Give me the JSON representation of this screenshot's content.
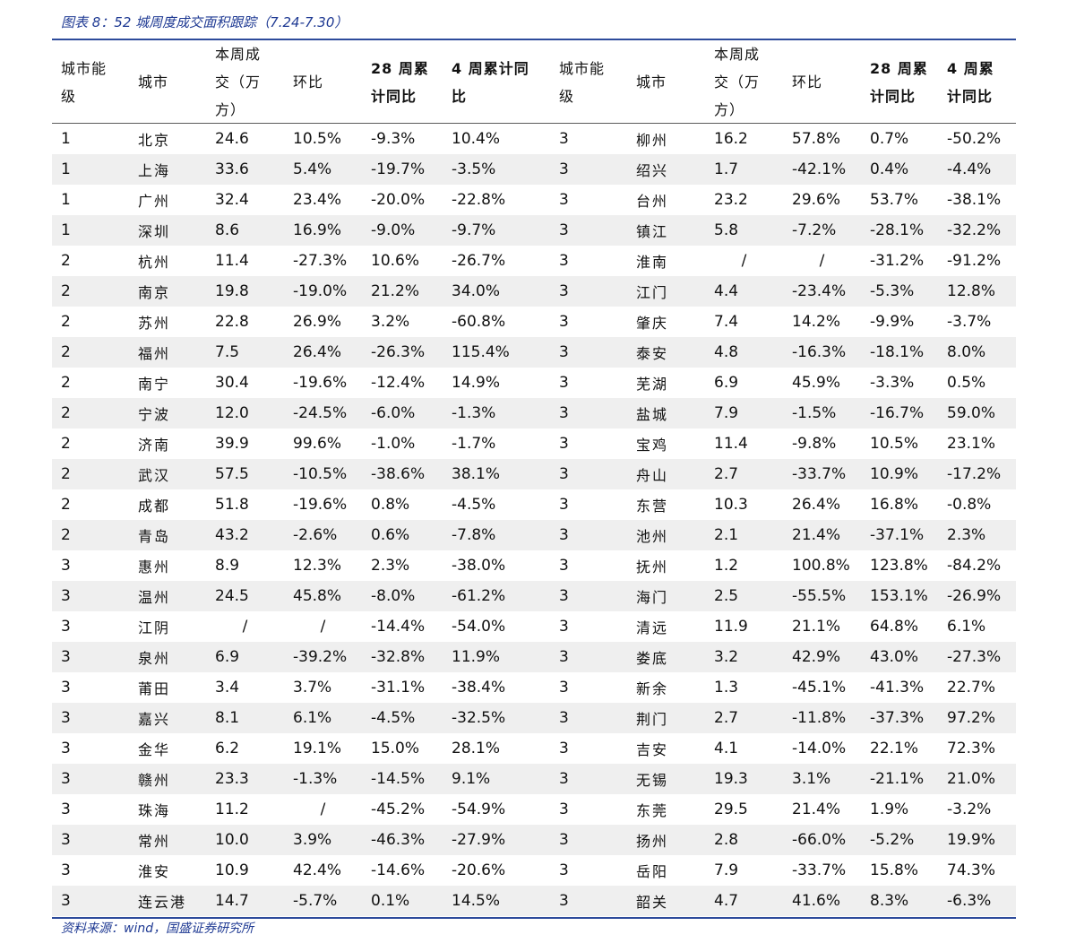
{
  "caption": "图表 8：52 城周度成交面积跟踪（7.24-7.30）",
  "source": "资料来源：wind，国盛证券研究所",
  "headers": [
    "城市能\n级",
    "城市",
    "本周成\n交（万\n方）",
    "环比",
    "28 周累\n计同比",
    "4 周累计同\n比",
    "城市能\n级",
    "城市",
    "本周成\n交（万\n方）",
    "环比",
    "28 周累\n计同比",
    "4 周累\n计同比"
  ],
  "rows": [
    [
      "1",
      "北京",
      "24.6",
      "10.5%",
      "-9.3%",
      "10.4%",
      "3",
      "柳州",
      "16.2",
      "57.8%",
      "0.7%",
      "-50.2%"
    ],
    [
      "1",
      "上海",
      "33.6",
      "5.4%",
      "-19.7%",
      "-3.5%",
      "3",
      "绍兴",
      "1.7",
      "-42.1%",
      "0.4%",
      "-4.4%"
    ],
    [
      "1",
      "广州",
      "32.4",
      "23.4%",
      "-20.0%",
      "-22.8%",
      "3",
      "台州",
      "23.2",
      "29.6%",
      "53.7%",
      "-38.1%"
    ],
    [
      "1",
      "深圳",
      "8.6",
      "16.9%",
      "-9.0%",
      "-9.7%",
      "3",
      "镇江",
      "5.8",
      "-7.2%",
      "-28.1%",
      "-32.2%"
    ],
    [
      "2",
      "杭州",
      "11.4",
      "-27.3%",
      "10.6%",
      "-26.7%",
      "3",
      "淮南",
      "/",
      "/",
      "-31.2%",
      "-91.2%"
    ],
    [
      "2",
      "南京",
      "19.8",
      "-19.0%",
      "21.2%",
      "34.0%",
      "3",
      "江门",
      "4.4",
      "-23.4%",
      "-5.3%",
      "12.8%"
    ],
    [
      "2",
      "苏州",
      "22.8",
      "26.9%",
      "3.2%",
      "-60.8%",
      "3",
      "肇庆",
      "7.4",
      "14.2%",
      "-9.9%",
      "-3.7%"
    ],
    [
      "2",
      "福州",
      "7.5",
      "26.4%",
      "-26.3%",
      "115.4%",
      "3",
      "泰安",
      "4.8",
      "-16.3%",
      "-18.1%",
      "8.0%"
    ],
    [
      "2",
      "南宁",
      "30.4",
      "-19.6%",
      "-12.4%",
      "14.9%",
      "3",
      "芜湖",
      "6.9",
      "45.9%",
      "-3.3%",
      "0.5%"
    ],
    [
      "2",
      "宁波",
      "12.0",
      "-24.5%",
      "-6.0%",
      "-1.3%",
      "3",
      "盐城",
      "7.9",
      "-1.5%",
      "-16.7%",
      "59.0%"
    ],
    [
      "2",
      "济南",
      "39.9",
      "99.6%",
      "-1.0%",
      "-1.7%",
      "3",
      "宝鸡",
      "11.4",
      "-9.8%",
      "10.5%",
      "23.1%"
    ],
    [
      "2",
      "武汉",
      "57.5",
      "-10.5%",
      "-38.6%",
      "38.1%",
      "3",
      "舟山",
      "2.7",
      "-33.7%",
      "10.9%",
      "-17.2%"
    ],
    [
      "2",
      "成都",
      "51.8",
      "-19.6%",
      "0.8%",
      "-4.5%",
      "3",
      "东营",
      "10.3",
      "26.4%",
      "16.8%",
      "-0.8%"
    ],
    [
      "2",
      "青岛",
      "43.2",
      "-2.6%",
      "0.6%",
      "-7.8%",
      "3",
      "池州",
      "2.1",
      "21.4%",
      "-37.1%",
      "2.3%"
    ],
    [
      "3",
      "惠州",
      "8.9",
      "12.3%",
      "2.3%",
      "-38.0%",
      "3",
      "抚州",
      "1.2",
      "100.8%",
      "123.8%",
      "-84.2%"
    ],
    [
      "3",
      "温州",
      "24.5",
      "45.8%",
      "-8.0%",
      "-61.2%",
      "3",
      "海门",
      "2.5",
      "-55.5%",
      "153.1%",
      "-26.9%"
    ],
    [
      "3",
      "江阴",
      "/",
      "/",
      "-14.4%",
      "-54.0%",
      "3",
      "清远",
      "11.9",
      "21.1%",
      "64.8%",
      "6.1%"
    ],
    [
      "3",
      "泉州",
      "6.9",
      "-39.2%",
      "-32.8%",
      "11.9%",
      "3",
      "娄底",
      "3.2",
      "42.9%",
      "43.0%",
      "-27.3%"
    ],
    [
      "3",
      "莆田",
      "3.4",
      "3.7%",
      "-31.1%",
      "-38.4%",
      "3",
      "新余",
      "1.3",
      "-45.1%",
      "-41.3%",
      "22.7%"
    ],
    [
      "3",
      "嘉兴",
      "8.1",
      "6.1%",
      "-4.5%",
      "-32.5%",
      "3",
      "荆门",
      "2.7",
      "-11.8%",
      "-37.3%",
      "97.2%"
    ],
    [
      "3",
      "金华",
      "6.2",
      "19.1%",
      "15.0%",
      "28.1%",
      "3",
      "吉安",
      "4.1",
      "-14.0%",
      "22.1%",
      "72.3%"
    ],
    [
      "3",
      "赣州",
      "23.3",
      "-1.3%",
      "-14.5%",
      "9.1%",
      "3",
      "无锡",
      "19.3",
      "3.1%",
      "-21.1%",
      "21.0%"
    ],
    [
      "3",
      "珠海",
      "11.2",
      "/",
      "-45.2%",
      "-54.9%",
      "3",
      "东莞",
      "29.5",
      "21.4%",
      "1.9%",
      "-3.2%"
    ],
    [
      "3",
      "常州",
      "10.0",
      "3.9%",
      "-46.3%",
      "-27.9%",
      "3",
      "扬州",
      "2.8",
      "-66.0%",
      "-5.2%",
      "19.9%"
    ],
    [
      "3",
      "淮安",
      "10.9",
      "42.4%",
      "-14.6%",
      "-20.6%",
      "3",
      "岳阳",
      "7.9",
      "-33.7%",
      "15.8%",
      "74.3%"
    ],
    [
      "3",
      "连云港",
      "14.7",
      "-5.7%",
      "0.1%",
      "14.5%",
      "3",
      "韶关",
      "4.7",
      "41.6%",
      "8.3%",
      "-6.3%"
    ]
  ]
}
